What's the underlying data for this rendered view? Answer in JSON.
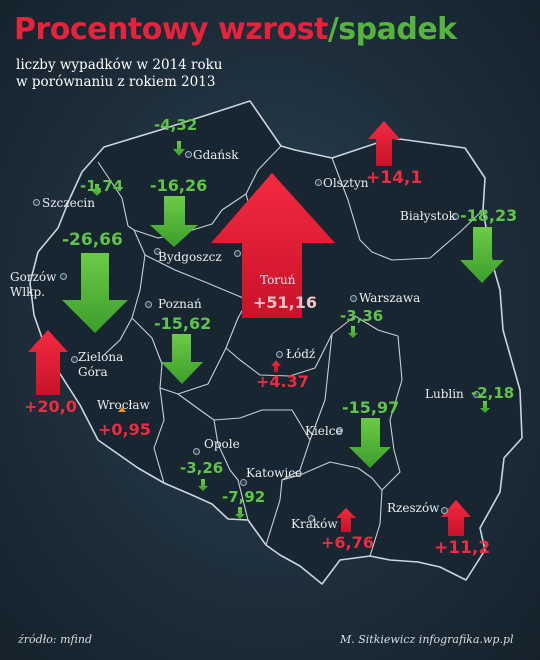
{
  "title": {
    "part1": "Procentowy wzrost",
    "part2": "/spadek"
  },
  "subtitle": {
    "line1": "liczby wypadków w 2014 roku",
    "line2": "w porównaniu z rokiem 2013"
  },
  "colors": {
    "increase": "#e8223a",
    "decrease": "#55b43d",
    "background": "#1d2d3a"
  },
  "cities": {
    "gdansk": {
      "name": "Gdańsk",
      "value": "-4,32",
      "direction": "down"
    },
    "olsztyn": {
      "name": "Olsztyn",
      "value": "+14,1",
      "direction": "up"
    },
    "szczecin": {
      "name": "Szczecin",
      "value": "-1,74",
      "direction": "down"
    },
    "bydgoszcz": {
      "name": "Bydgoszcz",
      "value": "-16,26",
      "direction": "down"
    },
    "bialystok": {
      "name": "Białystok",
      "value": "-18,23",
      "direction": "down"
    },
    "torun": {
      "name": "Toruń",
      "value": "+51,16",
      "direction": "up"
    },
    "gorzow": {
      "name_line1": "Gorzów",
      "name_line2": "Wlkp.",
      "value": "-26,66",
      "direction": "down"
    },
    "poznan": {
      "name": "Poznań",
      "value": "-15,62",
      "direction": "down"
    },
    "warszawa": {
      "name": "Warszawa",
      "value": "-3,36",
      "direction": "down"
    },
    "zielona_gora": {
      "name_line1": "Zielona",
      "name_line2": "Góra",
      "value": "+20,0",
      "direction": "up"
    },
    "lodz": {
      "name": "Łódź",
      "value": "+4.37",
      "direction": "up"
    },
    "lublin": {
      "name": "Lublin",
      "value": "-2,18",
      "direction": "down"
    },
    "wroclaw": {
      "name": "Wrocław",
      "value": "+0,95",
      "direction": "up"
    },
    "kielce": {
      "name": "Kielce",
      "value": "-15,97",
      "direction": "down"
    },
    "opole": {
      "name": "Opole",
      "value": "-3,26",
      "direction": "down"
    },
    "katowice": {
      "name": "Katowice",
      "value": "-7,92",
      "direction": "down"
    },
    "krakow": {
      "name": "Kraków",
      "value": "+6,76",
      "direction": "up"
    },
    "rzeszow": {
      "name": "Rzeszów",
      "value": "+11,2",
      "direction": "up"
    }
  },
  "footer": {
    "source": "źródło: mfind",
    "credit": "M. Sitkiewicz infografika.wp.pl"
  }
}
